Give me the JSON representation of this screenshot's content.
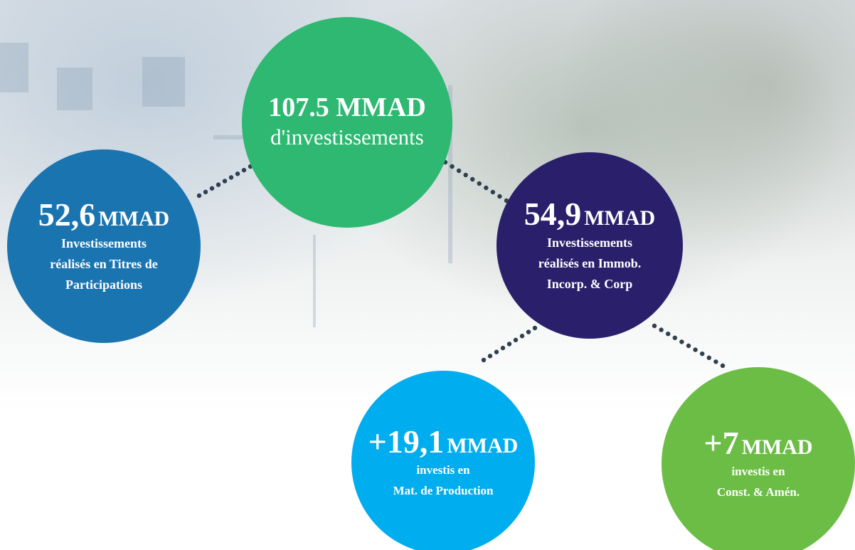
{
  "nodes": [
    {
      "amount": "107.5 MMAD",
      "lines": [
        "d'investissements"
      ]
    },
    {
      "amount": "52,6",
      "unit": "MMAD",
      "lines": [
        "Investissements",
        "réalisés en Titres de",
        "Participations"
      ]
    },
    {
      "amount": "54,9",
      "unit": "MMAD",
      "lines": [
        "Investissements",
        "réalisés en Immob.",
        "Incorp. & Corp"
      ]
    },
    {
      "amount": "+19,1",
      "unit": "MMAD",
      "lines": [
        "investis en",
        "Mat. de Production"
      ]
    },
    {
      "amount": "+7",
      "unit": "MMAD",
      "lines": [
        "investis  en",
        "Const. & Amén."
      ]
    }
  ]
}
